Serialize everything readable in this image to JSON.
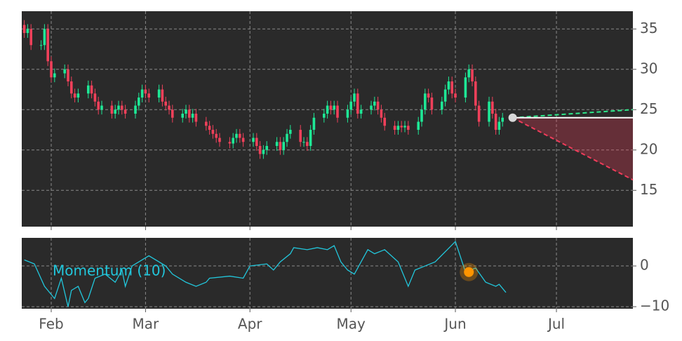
{
  "chart_data": [
    {
      "type": "candlestick",
      "x": [
        24,
        25,
        26,
        29,
        30,
        31,
        32,
        33,
        36,
        37,
        38,
        39,
        40,
        43,
        44,
        45,
        46,
        47,
        50,
        51,
        52,
        53,
        54,
        57,
        58,
        59,
        60,
        61,
        64,
        65,
        66,
        67,
        68,
        71,
        72,
        73,
        74,
        75,
        78,
        79,
        80,
        81,
        82,
        85,
        86,
        87,
        88,
        89,
        92,
        93,
        94,
        95,
        96,
        99,
        100,
        101,
        102,
        103,
        106,
        107,
        108,
        109,
        110,
        113,
        114,
        115,
        116,
        117,
        120,
        121,
        122,
        123,
        124,
        127,
        128,
        129,
        130,
        131,
        134,
        135,
        136,
        137,
        138,
        141,
        142,
        143,
        144,
        145,
        148,
        149,
        150,
        151,
        152,
        155,
        156,
        157,
        158,
        159,
        162,
        163,
        164,
        165,
        166
      ],
      "open": [
        35.5,
        34.5,
        35,
        33,
        33,
        35,
        31,
        29,
        29.5,
        30,
        28.5,
        27,
        26.5,
        27,
        28,
        27,
        26,
        25,
        25.5,
        24.5,
        25,
        25.5,
        25,
        24.5,
        25.5,
        26.5,
        27.5,
        27,
        26.5,
        27.5,
        26,
        25.5,
        25,
        24,
        24.5,
        25,
        24,
        24.5,
        23.5,
        23,
        22.5,
        22,
        21.5,
        21,
        20.8,
        21.5,
        22,
        21.5,
        21,
        21.5,
        20.5,
        19.5,
        20,
        20.5,
        21,
        20,
        21,
        22,
        22.5,
        21,
        21,
        20.5,
        22.5,
        24,
        24.5,
        25.5,
        25,
        25.5,
        24,
        25,
        26,
        27,
        24.5,
        25,
        25.5,
        26,
        25,
        24,
        23,
        22.5,
        23,
        22.8,
        23,
        22.5,
        23.5,
        25,
        27,
        26.5,
        25,
        26,
        27.5,
        28.5,
        27,
        26.5,
        29,
        30,
        28.5,
        25.5,
        23.5,
        26,
        24.5,
        22.5,
        23.5
      ],
      "high": [
        36.1,
        35.6,
        35.6,
        33.6,
        35.6,
        35.6,
        31.6,
        30.1,
        30.6,
        30.6,
        29.1,
        27.6,
        27.6,
        28.6,
        28.6,
        27.6,
        26.6,
        26.1,
        26.1,
        25.6,
        26.1,
        26.1,
        25.6,
        26.1,
        27.1,
        28.1,
        28.1,
        27.6,
        28.1,
        28.1,
        26.6,
        26.1,
        25.6,
        25.1,
        25.6,
        25.6,
        25.1,
        25.1,
        24.1,
        23.6,
        23.1,
        22.6,
        22.1,
        21.6,
        22.1,
        22.6,
        22.6,
        22.1,
        22.1,
        22.1,
        21.1,
        20.6,
        21.1,
        21.6,
        21.6,
        21.6,
        22.6,
        23.1,
        23.1,
        21.6,
        21.6,
        23.1,
        24.6,
        25.1,
        26.1,
        26.1,
        26.1,
        26.1,
        25.6,
        26.6,
        27.6,
        27.6,
        25.6,
        26.1,
        26.6,
        26.6,
        25.6,
        24.6,
        23.6,
        23.6,
        23.6,
        23.6,
        23.6,
        24.1,
        25.6,
        27.6,
        27.6,
        27.1,
        26.6,
        28.1,
        29.1,
        29.1,
        27.6,
        29.6,
        30.6,
        30.6,
        29.1,
        26.1,
        26.6,
        26.6,
        25.1,
        24.1,
        24.6
      ],
      "low": [
        33.9,
        33.9,
        32.4,
        32.4,
        32.4,
        30.4,
        28.4,
        28.4,
        28.9,
        27.9,
        26.4,
        25.9,
        25.9,
        26.4,
        26.4,
        25.4,
        24.4,
        24.4,
        23.9,
        23.9,
        24.4,
        24.4,
        23.9,
        23.9,
        24.9,
        25.9,
        26.4,
        25.9,
        25.9,
        25.4,
        24.9,
        24.4,
        23.4,
        23.4,
        23.9,
        23.4,
        23.4,
        22.9,
        22.4,
        21.9,
        21.4,
        20.9,
        20.4,
        20.2,
        20.2,
        20.9,
        20.9,
        20.4,
        20.4,
        19.9,
        18.9,
        18.9,
        19.4,
        19.9,
        19.4,
        19.4,
        20.4,
        21.4,
        20.4,
        20.4,
        19.9,
        19.9,
        21.9,
        23.4,
        23.9,
        24.4,
        24.4,
        23.4,
        23.4,
        24.4,
        25.4,
        23.9,
        23.9,
        24.4,
        24.9,
        24.4,
        23.4,
        22.4,
        21.9,
        21.9,
        22.2,
        22.2,
        21.9,
        21.9,
        22.9,
        24.4,
        25.9,
        24.4,
        24.4,
        25.4,
        26.9,
        26.4,
        25.9,
        25.9,
        28.4,
        27.9,
        24.9,
        22.9,
        22.9,
        23.9,
        21.9,
        21.9,
        22.9
      ],
      "close": [
        34.5,
        35,
        33,
        33,
        35,
        31,
        29,
        29.5,
        30,
        28.5,
        27,
        26.5,
        27,
        28,
        27,
        26,
        25,
        25.5,
        24.5,
        25,
        25.5,
        25,
        24.5,
        25.5,
        26.5,
        27.5,
        27,
        26.5,
        27.5,
        26,
        25.5,
        25,
        24,
        24.5,
        25,
        24,
        24.5,
        23.5,
        23,
        22.5,
        22,
        21.5,
        21,
        20.8,
        21.5,
        22,
        21.5,
        21,
        21.5,
        20.5,
        19.5,
        20,
        20.5,
        21,
        20,
        21,
        22,
        22.5,
        21,
        21,
        20.5,
        22.5,
        24,
        24.5,
        25.5,
        25,
        25.5,
        24,
        25,
        26,
        27,
        24.5,
        25,
        25.5,
        26,
        25,
        24,
        23,
        22.5,
        23,
        22.8,
        23,
        22.5,
        23.5,
        25,
        27,
        26.5,
        25,
        26,
        27.5,
        28.5,
        27,
        26.5,
        29,
        30,
        28.5,
        25.5,
        23.5,
        26,
        24.5,
        22.5,
        23.5,
        24
      ],
      "up_color": "#1ee896",
      "down_color": "#f0405a",
      "forecast": {
        "x": [
          169,
          204.7
        ],
        "upper": [
          24,
          25
        ],
        "middle": [
          24,
          24
        ],
        "lower": [
          24,
          16.3
        ],
        "upper_color": "#2ee88a",
        "middle_color": "#ffffff",
        "lower_color": "#f03c5a"
      },
      "last_point": {
        "x": 169,
        "value": 24
      },
      "xlim": [
        23.25,
        204.7
      ],
      "ylim": [
        10.5,
        37.2
      ],
      "yticks": [
        15,
        20,
        25,
        30,
        35
      ],
      "grid": true
    },
    {
      "type": "line",
      "label": "Momentum (10)",
      "series": [
        {
          "name": "Momentum (10)",
          "color": "#22c7dc",
          "x": [
            24,
            27,
            30,
            33,
            35,
            37,
            38,
            40,
            42,
            43,
            45,
            48,
            51,
            53,
            54,
            56,
            59,
            61,
            66,
            68,
            72,
            75,
            78,
            79,
            85,
            89,
            91,
            96,
            98,
            100,
            103,
            104,
            108,
            111,
            114,
            116,
            118,
            120,
            122,
            124,
            126,
            128,
            131,
            135,
            138,
            140,
            143,
            146,
            152,
            155,
            158,
            161,
            164,
            165,
            167
          ],
          "values": [
            1.5,
            0.5,
            -5,
            -8,
            -3,
            -10,
            -6,
            -5,
            -9,
            -8,
            -3,
            -2,
            -4,
            -1,
            -5,
            0,
            1.5,
            2.5,
            0,
            -2,
            -4,
            -5,
            -4,
            -3,
            -2.5,
            -3,
            0,
            0.5,
            -1,
            1,
            3,
            4.5,
            4,
            4.5,
            4,
            5,
            1,
            -1,
            -2,
            1,
            4,
            3,
            4,
            1,
            -5,
            -1,
            0,
            1,
            6,
            -1.5,
            -0.5,
            -4,
            -5,
            -4.5,
            -6.5
          ]
        }
      ],
      "marker": {
        "x": 156,
        "value": -1.5,
        "color": "#ff9500"
      },
      "xlim": [
        23.25,
        204.7
      ],
      "ylim": [
        -10.5,
        6.9
      ],
      "yticks": [
        {
          "value": -10,
          "label": "−10"
        },
        0
      ],
      "xticks": [
        {
          "value": 32,
          "label": "Feb"
        },
        {
          "value": 60,
          "label": "Mar"
        },
        {
          "value": 91,
          "label": "Apr"
        },
        {
          "value": 121,
          "label": "May"
        },
        {
          "value": 152,
          "label": "Jun"
        },
        {
          "value": 182,
          "label": "Jul"
        }
      ],
      "grid": true
    }
  ]
}
